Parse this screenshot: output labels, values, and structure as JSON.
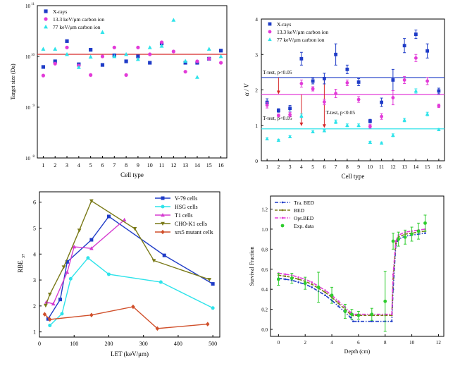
{
  "chart_data": [
    {
      "type": "scatter",
      "xlabel": "Cell type",
      "ylabel": "Target size (Da)",
      "ylog": true,
      "ylim": [
        100000000.0,
        100000000000.0
      ],
      "xlim": [
        0.5,
        16.5
      ],
      "xticks": [
        "1",
        "2",
        "3",
        "4",
        "5",
        "6",
        "7",
        "8",
        "9",
        "10",
        "11",
        "12",
        "13",
        "14",
        "15",
        "16"
      ],
      "yticks": [
        {
          "v": 100000000.0,
          "base": "10",
          "exp": "8"
        },
        {
          "v": 1000000000.0,
          "base": "10",
          "exp": "9"
        },
        {
          "v": 10000000000.0,
          "base": "10",
          "exp": "10"
        },
        {
          "v": 100000000000.0,
          "base": "10",
          "exp": "11"
        }
      ],
      "legend_position": "top-left",
      "hline": {
        "value": 11000000000.0,
        "color": "#d62728"
      },
      "series": [
        {
          "name": "X-rays",
          "marker": "square",
          "color": "#1f3cc7",
          "values": [
            6200000000.0,
            8000000000.0,
            20000000000.0,
            7000000000.0,
            13500000000.0,
            6800000000.0,
            10500000000.0,
            8000000000.0,
            10000000000.0,
            7500000000.0,
            18000000000.0,
            null,
            7500000000.0,
            7500000000.0,
            9000000000.0,
            13000000000.0
          ]
        },
        {
          "name": "13.3 keV/μm carbon ion",
          "marker": "circle",
          "color": "#e23ad8",
          "values": [
            4200000000.0,
            7200000000.0,
            15000000000.0,
            6600000000.0,
            4300000000.0,
            10000000000.0,
            15000000000.0,
            4300000000.0,
            15000000000.0,
            11000000000.0,
            19000000000.0,
            12500000000.0,
            5000000000.0,
            8000000000.0,
            9000000000.0,
            7500000000.0
          ]
        },
        {
          "name": "77 keV/μm carbon ion",
          "marker": "triangle",
          "color": "#2ee3ea",
          "values": [
            14000000000.0,
            14000000000.0,
            11000000000.0,
            6100000000.0,
            9800000000.0,
            30000000000.0,
            10000000000.0,
            11000000000.0,
            8800000000.0,
            15000000000.0,
            16000000000.0,
            52000000000.0,
            8100000000.0,
            3900000000.0,
            14000000000.0,
            10000000000.0
          ]
        }
      ]
    },
    {
      "type": "scatter",
      "xlabel": "Cell type",
      "ylabel": "α / V",
      "ylim": [
        0,
        4
      ],
      "xlim": [
        0.5,
        16.5
      ],
      "xticks": [
        "1",
        "2",
        "3",
        "4",
        "5",
        "6",
        "7",
        "8",
        "9",
        "10",
        "11",
        "12",
        "13",
        "14",
        "15",
        "16"
      ],
      "yticks": [
        "0",
        "1",
        "2",
        "3",
        "4"
      ],
      "legend_position": "top-left",
      "hlines": [
        {
          "value": 2.35,
          "color": "#1f3cc7"
        },
        {
          "value": 1.87,
          "color": "#e23ad8"
        },
        {
          "value": 0.9,
          "color": "#2ee3ea"
        }
      ],
      "annotations": [
        {
          "text": "T-test, p<0.05",
          "near_line": 2.35
        },
        {
          "text": "T-test, p<0.05",
          "near_line": 1.87
        },
        {
          "text": "T-test, p<0.05",
          "near_line": 0.9
        }
      ],
      "series": [
        {
          "name": "X-rays",
          "marker": "square",
          "color": "#1f3cc7",
          "values": [
            1.65,
            1.42,
            1.48,
            2.88,
            2.25,
            2.32,
            3.0,
            2.58,
            2.22,
            1.12,
            1.65,
            2.28,
            3.25,
            3.57,
            3.1,
            1.97
          ],
          "errors": [
            0.1,
            0.05,
            0.08,
            0.18,
            0.08,
            0.15,
            0.3,
            0.12,
            0.1,
            0.05,
            0.12,
            0.3,
            0.2,
            0.12,
            0.2,
            0.08
          ]
        },
        {
          "name": "13.3 keV/μm carbon ion",
          "marker": "circle",
          "color": "#e23ad8",
          "values": [
            1.57,
            1.28,
            1.3,
            2.18,
            2.03,
            1.66,
            1.9,
            2.2,
            1.73,
            0.97,
            1.25,
            1.78,
            2.28,
            2.9,
            2.25,
            1.55
          ],
          "errors": [
            0.08,
            0.04,
            0.06,
            0.1,
            0.06,
            0.08,
            0.12,
            0.08,
            0.08,
            0.05,
            0.08,
            0.2,
            0.1,
            0.1,
            0.1,
            0.05
          ]
        },
        {
          "name": "77 keV/μm carbon ion",
          "marker": "triangle",
          "color": "#2ee3ea",
          "values": [
            0.62,
            0.58,
            0.68,
            1.27,
            0.82,
            0.85,
            1.1,
            1.0,
            1.0,
            0.52,
            0.5,
            0.72,
            1.15,
            1.97,
            1.32,
            0.88
          ],
          "errors": [
            0.03,
            0.03,
            0.03,
            0.05,
            0.03,
            0.03,
            0.05,
            0.04,
            0.04,
            0.03,
            0.03,
            0.04,
            0.05,
            0.06,
            0.05,
            0.03
          ]
        }
      ]
    },
    {
      "type": "line",
      "xlabel": "LET (keV/μm)",
      "ylabel_main": "RBE",
      "ylabel_sub": "37",
      "xlim": [
        0,
        520
      ],
      "ylim": [
        0.8,
        6.4
      ],
      "xticks": [
        0,
        100,
        200,
        300,
        400,
        500
      ],
      "yticks": [
        1,
        2,
        3,
        4,
        5,
        6
      ],
      "legend_position": "top-right",
      "series": [
        {
          "name": "V-79 cells",
          "marker": "square",
          "color": "#1f3cc7",
          "x": [
            25,
            60,
            80,
            150,
            200,
            360,
            500
          ],
          "y": [
            1.5,
            2.25,
            3.7,
            4.55,
            5.45,
            3.95,
            2.85
          ]
        },
        {
          "name": "HSG cells",
          "marker": "circle",
          "color": "#2ee3ea",
          "x": [
            30,
            65,
            90,
            140,
            200,
            350,
            500
          ],
          "y": [
            1.25,
            1.7,
            3.05,
            3.85,
            3.22,
            2.92,
            1.92
          ]
        },
        {
          "name": "T1 cells",
          "marker": "triangle",
          "color": "#d53bd0",
          "x": [
            20,
            40,
            80,
            100,
            150,
            245
          ],
          "y": [
            2.15,
            2.08,
            3.3,
            4.28,
            4.22,
            5.32
          ]
        },
        {
          "name": "CHO-K1 cells",
          "marker": "triangle-down",
          "color": "#7a7a18",
          "x": [
            18,
            30,
            70,
            115,
            150,
            275,
            330,
            490
          ],
          "y": [
            2.02,
            2.45,
            3.5,
            4.92,
            6.05,
            4.98,
            3.75,
            3.02
          ]
        },
        {
          "name": "xrs5 mutant cells",
          "marker": "diamond",
          "color": "#d04f2a",
          "x": [
            15,
            30,
            150,
            270,
            340,
            485
          ],
          "y": [
            1.68,
            1.48,
            1.65,
            1.97,
            1.13,
            1.3
          ]
        }
      ]
    },
    {
      "type": "line",
      "xlabel": "Depth (cm)",
      "ylabel": "Survival Fraction",
      "xlim": [
        -0.6,
        12.4
      ],
      "ylim": [
        -0.07,
        1.33
      ],
      "xticks": [
        0,
        2,
        4,
        6,
        8,
        10,
        12
      ],
      "yticks": [
        "0.0",
        "0.2",
        "0.4",
        "0.6",
        "0.8",
        "1.0",
        "1.2"
      ],
      "legend_position": "top-left",
      "series": [
        {
          "name": "Tra. BED",
          "style": "dash-dot",
          "marker": "dot",
          "color": "#1f3cc7",
          "x": [
            0,
            0.5,
            1,
            1.5,
            2,
            2.5,
            3,
            3.5,
            4,
            4.5,
            5,
            5.4,
            5.6,
            6,
            7,
            8,
            8.5,
            8.6,
            8.8,
            9,
            9.5,
            10,
            10.5,
            11
          ],
          "y": [
            0.51,
            0.5,
            0.49,
            0.47,
            0.45,
            0.42,
            0.38,
            0.34,
            0.29,
            0.23,
            0.17,
            0.12,
            0.08,
            0.08,
            0.08,
            0.08,
            0.08,
            0.4,
            0.84,
            0.9,
            0.93,
            0.94,
            0.95,
            0.96
          ]
        },
        {
          "name": "BED",
          "style": "dash",
          "marker": "dot",
          "color": "#7a7a18",
          "x": [
            0,
            0.5,
            1,
            1.5,
            2,
            2.5,
            3,
            3.5,
            4,
            4.5,
            5,
            5.4,
            5.6,
            6,
            7,
            8,
            8.5,
            8.6,
            8.8,
            9,
            9.5,
            10,
            10.5,
            11
          ],
          "y": [
            0.54,
            0.53,
            0.52,
            0.5,
            0.48,
            0.45,
            0.41,
            0.37,
            0.32,
            0.26,
            0.2,
            0.15,
            0.14,
            0.14,
            0.14,
            0.14,
            0.14,
            0.5,
            0.86,
            0.92,
            0.95,
            0.96,
            0.97,
            0.98
          ]
        },
        {
          "name": "Opt.BED",
          "style": "dash-dot",
          "marker": "dot",
          "color": "#e23ad8",
          "x": [
            0,
            0.5,
            1,
            1.5,
            2,
            2.5,
            3,
            3.5,
            4,
            4.5,
            5,
            5.4,
            5.6,
            6,
            7,
            8,
            8.5,
            8.6,
            8.8,
            9,
            9.5,
            10,
            10.5,
            11
          ],
          "y": [
            0.56,
            0.55,
            0.54,
            0.52,
            0.5,
            0.47,
            0.43,
            0.39,
            0.34,
            0.28,
            0.22,
            0.17,
            0.15,
            0.15,
            0.15,
            0.15,
            0.15,
            0.55,
            0.88,
            0.94,
            0.97,
            0.98,
            0.99,
            1.0
          ]
        },
        {
          "name": "Exp. data",
          "style": "points",
          "marker": "circle",
          "color": "#2ecc2e",
          "x": [
            0,
            1,
            2,
            3,
            4,
            5,
            5.5,
            6,
            7,
            8,
            8.6,
            9,
            9.5,
            10,
            10.5,
            11
          ],
          "y": [
            0.5,
            0.51,
            0.46,
            0.42,
            0.34,
            0.18,
            0.15,
            0.14,
            0.15,
            0.28,
            0.88,
            0.9,
            0.92,
            0.95,
            0.98,
            1.06
          ],
          "errors": [
            0.06,
            0.05,
            0.06,
            0.15,
            0.08,
            0.07,
            0.05,
            0.04,
            0.06,
            0.3,
            0.08,
            0.07,
            0.07,
            0.07,
            0.08,
            0.08
          ]
        }
      ]
    }
  ]
}
